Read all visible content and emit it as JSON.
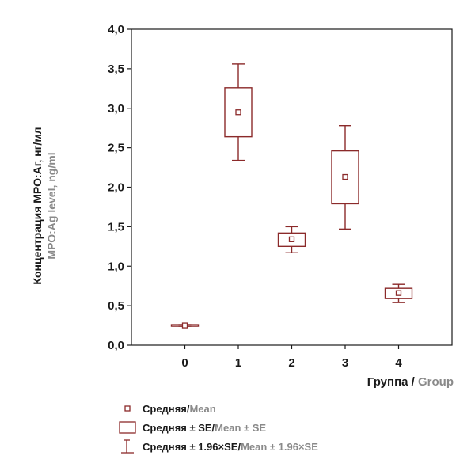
{
  "chart_data": {
    "type": "box",
    "ylabel_ru": "Концентрация МРО:Аг, нг/мл",
    "ylabel_en": "МРО:Ag level, ng/ml",
    "xlabel_ru": "Группа",
    "xlabel_sep": " / ",
    "xlabel_en": "Group",
    "ylim": [
      0,
      4
    ],
    "yticks": [
      "0,0",
      "0,5",
      "1,0",
      "1,5",
      "2,0",
      "2,5",
      "3,0",
      "3,5",
      "4,0"
    ],
    "xlim": [
      -1,
      5
    ],
    "grid": false,
    "series_color": "#8b2a2a",
    "groups": [
      {
        "label": "0",
        "x": 0,
        "mean": 0.25,
        "se_low": 0.24,
        "se_high": 0.26,
        "ci_low": 0.24,
        "ci_high": 0.26
      },
      {
        "label": "1",
        "x": 1,
        "mean": 2.95,
        "se_low": 2.64,
        "se_high": 3.26,
        "ci_low": 2.34,
        "ci_high": 3.56
      },
      {
        "label": "2",
        "x": 2,
        "mean": 1.34,
        "se_low": 1.25,
        "se_high": 1.42,
        "ci_low": 1.17,
        "ci_high": 1.5
      },
      {
        "label": "3",
        "x": 3,
        "mean": 2.13,
        "se_low": 1.79,
        "se_high": 2.46,
        "ci_low": 1.47,
        "ci_high": 2.78
      },
      {
        "label": "4",
        "x": 4,
        "mean": 0.66,
        "se_low": 0.59,
        "se_high": 0.72,
        "ci_low": 0.54,
        "ci_high": 0.77
      }
    ]
  },
  "legend": [
    {
      "symbol": "mean-marker",
      "ru": "Средняя",
      "sep": " / ",
      "en": "Mean"
    },
    {
      "symbol": "se-box",
      "ru": "Средняя ± SE",
      "sep": " / ",
      "en": "Mean ± SE"
    },
    {
      "symbol": "ci-whisker",
      "ru": "Средняя ± 1.96×SE",
      "sep": " / ",
      "en": "Mean ± 1.96×SE"
    }
  ]
}
